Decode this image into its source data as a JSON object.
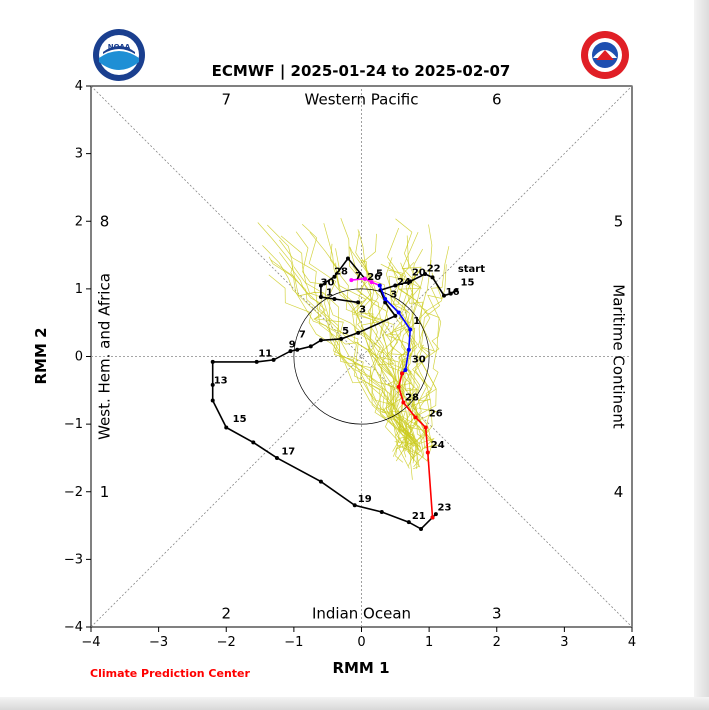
{
  "logos": {
    "left": {
      "name": "NOAA",
      "text": "NOAA"
    },
    "right": {
      "name": "National Weather Service",
      "text": "NATIONAL WEATHER SERVICE"
    }
  },
  "footer": {
    "credit": "Climate Prediction Center"
  },
  "chart_data": {
    "type": "line",
    "title": "ECMWF | 2025-01-24 to 2025-02-07",
    "xlabel": "RMM 1",
    "ylabel": "RMM 2",
    "xlim": [
      -4,
      4
    ],
    "ylim": [
      -4,
      4
    ],
    "xticks": [
      -4,
      -3,
      -2,
      -1,
      0,
      1,
      2,
      3,
      4
    ],
    "yticks": [
      -4,
      -3,
      -2,
      -1,
      0,
      1,
      2,
      3,
      4
    ],
    "tick_labels": [
      "−4",
      "−3",
      "−2",
      "−1",
      "0",
      "1",
      "2",
      "3",
      "4"
    ],
    "grid": "dotted diagonal and center lines",
    "unit_circle_radius": 1,
    "phase_numbers": [
      {
        "label": "1",
        "x": -3.8,
        "y": -2.0
      },
      {
        "label": "2",
        "x": -2.0,
        "y": -3.8
      },
      {
        "label": "3",
        "x": 2.0,
        "y": -3.8
      },
      {
        "label": "4",
        "x": 3.8,
        "y": -2.0
      },
      {
        "label": "5",
        "x": 3.8,
        "y": 2.0
      },
      {
        "label": "6",
        "x": 2.0,
        "y": 3.8
      },
      {
        "label": "7",
        "x": -2.0,
        "y": 3.8
      },
      {
        "label": "8",
        "x": -3.8,
        "y": 2.0
      }
    ],
    "region_labels": {
      "top": "Western Pacific",
      "bottom": "Indian Ocean",
      "left": "West. Hem. and Africa",
      "right": "Maritime Continent"
    },
    "series": [
      {
        "color": "#000000",
        "points": [
          [
            1.4,
            0.98
          ],
          [
            1.32,
            0.93
          ],
          [
            1.22,
            0.9
          ],
          [
            1.05,
            1.17
          ],
          [
            0.94,
            1.22
          ],
          [
            0.72,
            1.11
          ],
          [
            0.5,
            1.05
          ],
          [
            0.28,
            0.98
          ],
          [
            0.35,
            0.8
          ],
          [
            0.5,
            0.6
          ],
          [
            -0.05,
            0.35
          ],
          [
            -0.3,
            0.26
          ],
          [
            -0.6,
            0.24
          ],
          [
            -0.75,
            0.15
          ],
          [
            -0.95,
            0.1
          ],
          [
            -1.05,
            0.08
          ],
          [
            -1.3,
            -0.05
          ],
          [
            -1.55,
            -0.08
          ],
          [
            -2.2,
            -0.08
          ],
          [
            -2.2,
            -0.42
          ],
          [
            -2.2,
            -0.65
          ],
          [
            -2.0,
            -1.05
          ],
          [
            -1.6,
            -1.27
          ],
          [
            -1.25,
            -1.5
          ],
          [
            -0.6,
            -1.85
          ],
          [
            -0.1,
            -2.2
          ],
          [
            0.3,
            -2.3
          ],
          [
            0.7,
            -2.45
          ],
          [
            0.88,
            -2.55
          ],
          [
            1.05,
            -2.38
          ],
          [
            1.1,
            -2.33
          ]
        ],
        "labels": [
          {
            "text": "start",
            "x": 1.38,
            "y": 1.22
          },
          {
            "text": "15",
            "x": 1.42,
            "y": 1.02
          },
          {
            "text": "16",
            "x": 1.2,
            "y": 0.88
          },
          {
            "text": "22",
            "x": 0.92,
            "y": 1.23
          },
          {
            "text": "20",
            "x": 0.7,
            "y": 1.17
          },
          {
            "text": "24",
            "x": 0.48,
            "y": 1.03
          },
          {
            "text": "3",
            "x": -0.08,
            "y": 0.62
          },
          {
            "text": "5",
            "x": -0.33,
            "y": 0.3
          },
          {
            "text": "7",
            "x": -0.97,
            "y": 0.25
          },
          {
            "text": "9",
            "x": -1.12,
            "y": 0.1
          },
          {
            "text": "11",
            "x": -1.57,
            "y": -0.03
          },
          {
            "text": "13",
            "x": -2.23,
            "y": -0.43
          },
          {
            "text": "15",
            "x": -1.95,
            "y": -1.0
          },
          {
            "text": "17",
            "x": -1.23,
            "y": -1.48
          },
          {
            "text": "19",
            "x": -0.1,
            "y": -2.18
          },
          {
            "text": "21",
            "x": 0.7,
            "y": -2.43
          },
          {
            "text": "23",
            "x": 1.08,
            "y": -2.31
          }
        ]
      },
      {
        "color": "#000000",
        "points": [
          [
            -0.05,
            0.8
          ],
          [
            -0.4,
            0.85
          ],
          [
            -0.6,
            0.88
          ],
          [
            -0.6,
            1.05
          ],
          [
            -0.4,
            1.18
          ],
          [
            -0.2,
            1.45
          ],
          [
            0.05,
            1.15
          ]
        ],
        "labels": [
          {
            "text": "30",
            "x": -0.65,
            "y": 1.02
          },
          {
            "text": "1",
            "x": -0.57,
            "y": 0.87
          },
          {
            "text": "28",
            "x": -0.45,
            "y": 1.18
          }
        ]
      },
      {
        "color": "#ff00ff",
        "points": [
          [
            -0.15,
            1.13
          ],
          [
            0.05,
            1.15
          ],
          [
            0.15,
            1.1
          ],
          [
            0.27,
            1.05
          ]
        ],
        "labels": [
          {
            "text": "7",
            "x": -0.14,
            "y": 1.12
          },
          {
            "text": "26",
            "x": 0.04,
            "y": 1.1
          },
          {
            "text": "5",
            "x": 0.17,
            "y": 1.15
          }
        ]
      },
      {
        "color": "#0000ff",
        "points": [
          [
            0.27,
            1.05
          ],
          [
            0.35,
            0.85
          ],
          [
            0.55,
            0.65
          ],
          [
            0.72,
            0.4
          ],
          [
            0.7,
            0.1
          ],
          [
            0.65,
            -0.2
          ],
          [
            0.6,
            -0.25
          ]
        ],
        "labels": [
          {
            "text": "3",
            "x": 0.38,
            "y": 0.84
          },
          {
            "text": "1",
            "x": 0.72,
            "y": 0.45
          },
          {
            "text": "30",
            "x": 0.7,
            "y": -0.12
          }
        ]
      },
      {
        "color": "#ff0000",
        "points": [
          [
            0.6,
            -0.25
          ],
          [
            0.55,
            -0.45
          ],
          [
            0.62,
            -0.68
          ],
          [
            0.8,
            -0.9
          ],
          [
            0.95,
            -1.05
          ],
          [
            0.98,
            -1.42
          ],
          [
            1.05,
            -2.38
          ]
        ],
        "labels": [
          {
            "text": "28",
            "x": 0.6,
            "y": -0.68
          },
          {
            "text": "26",
            "x": 0.95,
            "y": -0.92
          },
          {
            "text": "24",
            "x": 0.98,
            "y": -1.38
          }
        ]
      }
    ]
  }
}
